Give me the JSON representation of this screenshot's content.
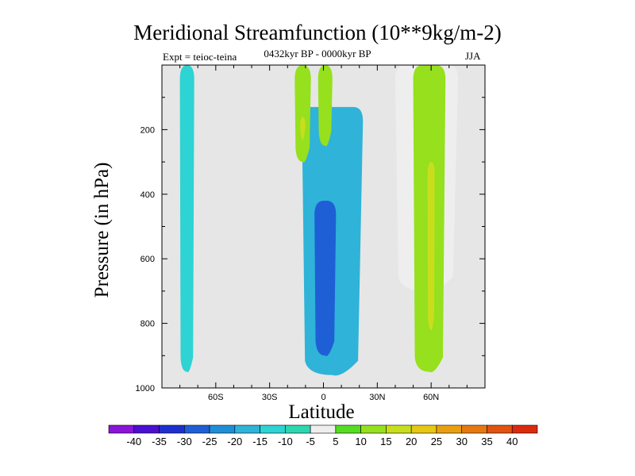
{
  "header": {
    "title": "Meridional Streamfunction (10**9kg/m-2)",
    "subtitle": "0432kyr BP - 0000kyr BP",
    "left_label": "Expt = teioc-teina",
    "right_label": "JJA"
  },
  "chart_data": {
    "type": "contour",
    "title": "Meridional Streamfunction (10**9kg/m-2)",
    "xlabel": "Latitude",
    "ylabel": "Pressure (in hPa)",
    "xlim": [
      -90,
      90
    ],
    "ylim": [
      1000,
      0
    ],
    "x_ticks": [
      {
        "value": -60,
        "label": "60S"
      },
      {
        "value": -30,
        "label": "30S"
      },
      {
        "value": 0,
        "label": "0"
      },
      {
        "value": 30,
        "label": "30N"
      },
      {
        "value": 60,
        "label": "60N"
      }
    ],
    "y_ticks": [
      {
        "value": 200,
        "label": "200"
      },
      {
        "value": 400,
        "label": "400"
      },
      {
        "value": 600,
        "label": "600"
      },
      {
        "value": 800,
        "label": "800"
      },
      {
        "value": 1000,
        "label": "1000"
      }
    ],
    "features": [
      {
        "name": "sh-high-lat-negative",
        "lat_range": [
          -80,
          -72
        ],
        "p_range": [
          0,
          950
        ],
        "value": -15
      },
      {
        "name": "tropical-negative-cell",
        "lat_range": [
          -12,
          22
        ],
        "p_range": [
          130,
          960
        ],
        "value": -20
      },
      {
        "name": "tropical-negative-core",
        "lat_range": [
          -5,
          7
        ],
        "p_range": [
          420,
          900
        ],
        "value": -30
      },
      {
        "name": "upper-positive-south",
        "lat_range": [
          -16,
          -7
        ],
        "p_range": [
          0,
          300
        ],
        "value": 10
      },
      {
        "name": "upper-positive-core",
        "lat_range": [
          -13,
          -10
        ],
        "p_range": [
          160,
          230
        ],
        "value": 15
      },
      {
        "name": "upper-positive-north",
        "lat_range": [
          -3,
          5
        ],
        "p_range": [
          0,
          250
        ],
        "value": 10
      },
      {
        "name": "nh-midlat-weak-negative",
        "lat_range": [
          40,
          75
        ],
        "p_range": [
          0,
          700
        ],
        "value": -5
      },
      {
        "name": "nh-midlat-positive",
        "lat_range": [
          50,
          68
        ],
        "p_range": [
          0,
          950
        ],
        "value": 10
      },
      {
        "name": "nh-midlat-positive-core",
        "lat_range": [
          58,
          62
        ],
        "p_range": [
          300,
          820
        ],
        "value": 15
      }
    ],
    "colorbar": {
      "levels": [
        -40,
        -35,
        -30,
        -25,
        -20,
        -15,
        -10,
        -5,
        5,
        10,
        15,
        20,
        25,
        30,
        35,
        40
      ],
      "colors": [
        "#8a14d8",
        "#4b0fcf",
        "#1f2fcf",
        "#1f5fd6",
        "#1f8ed6",
        "#2fb3d8",
        "#2ed3d3",
        "#2ed6b0",
        "#eeeeee",
        "#55dd22",
        "#96e01e",
        "#c8de1c",
        "#e6c814",
        "#e8a012",
        "#e67812",
        "#e25210",
        "#dc2a0e"
      ]
    },
    "missing_color": "#e6e6e6"
  }
}
